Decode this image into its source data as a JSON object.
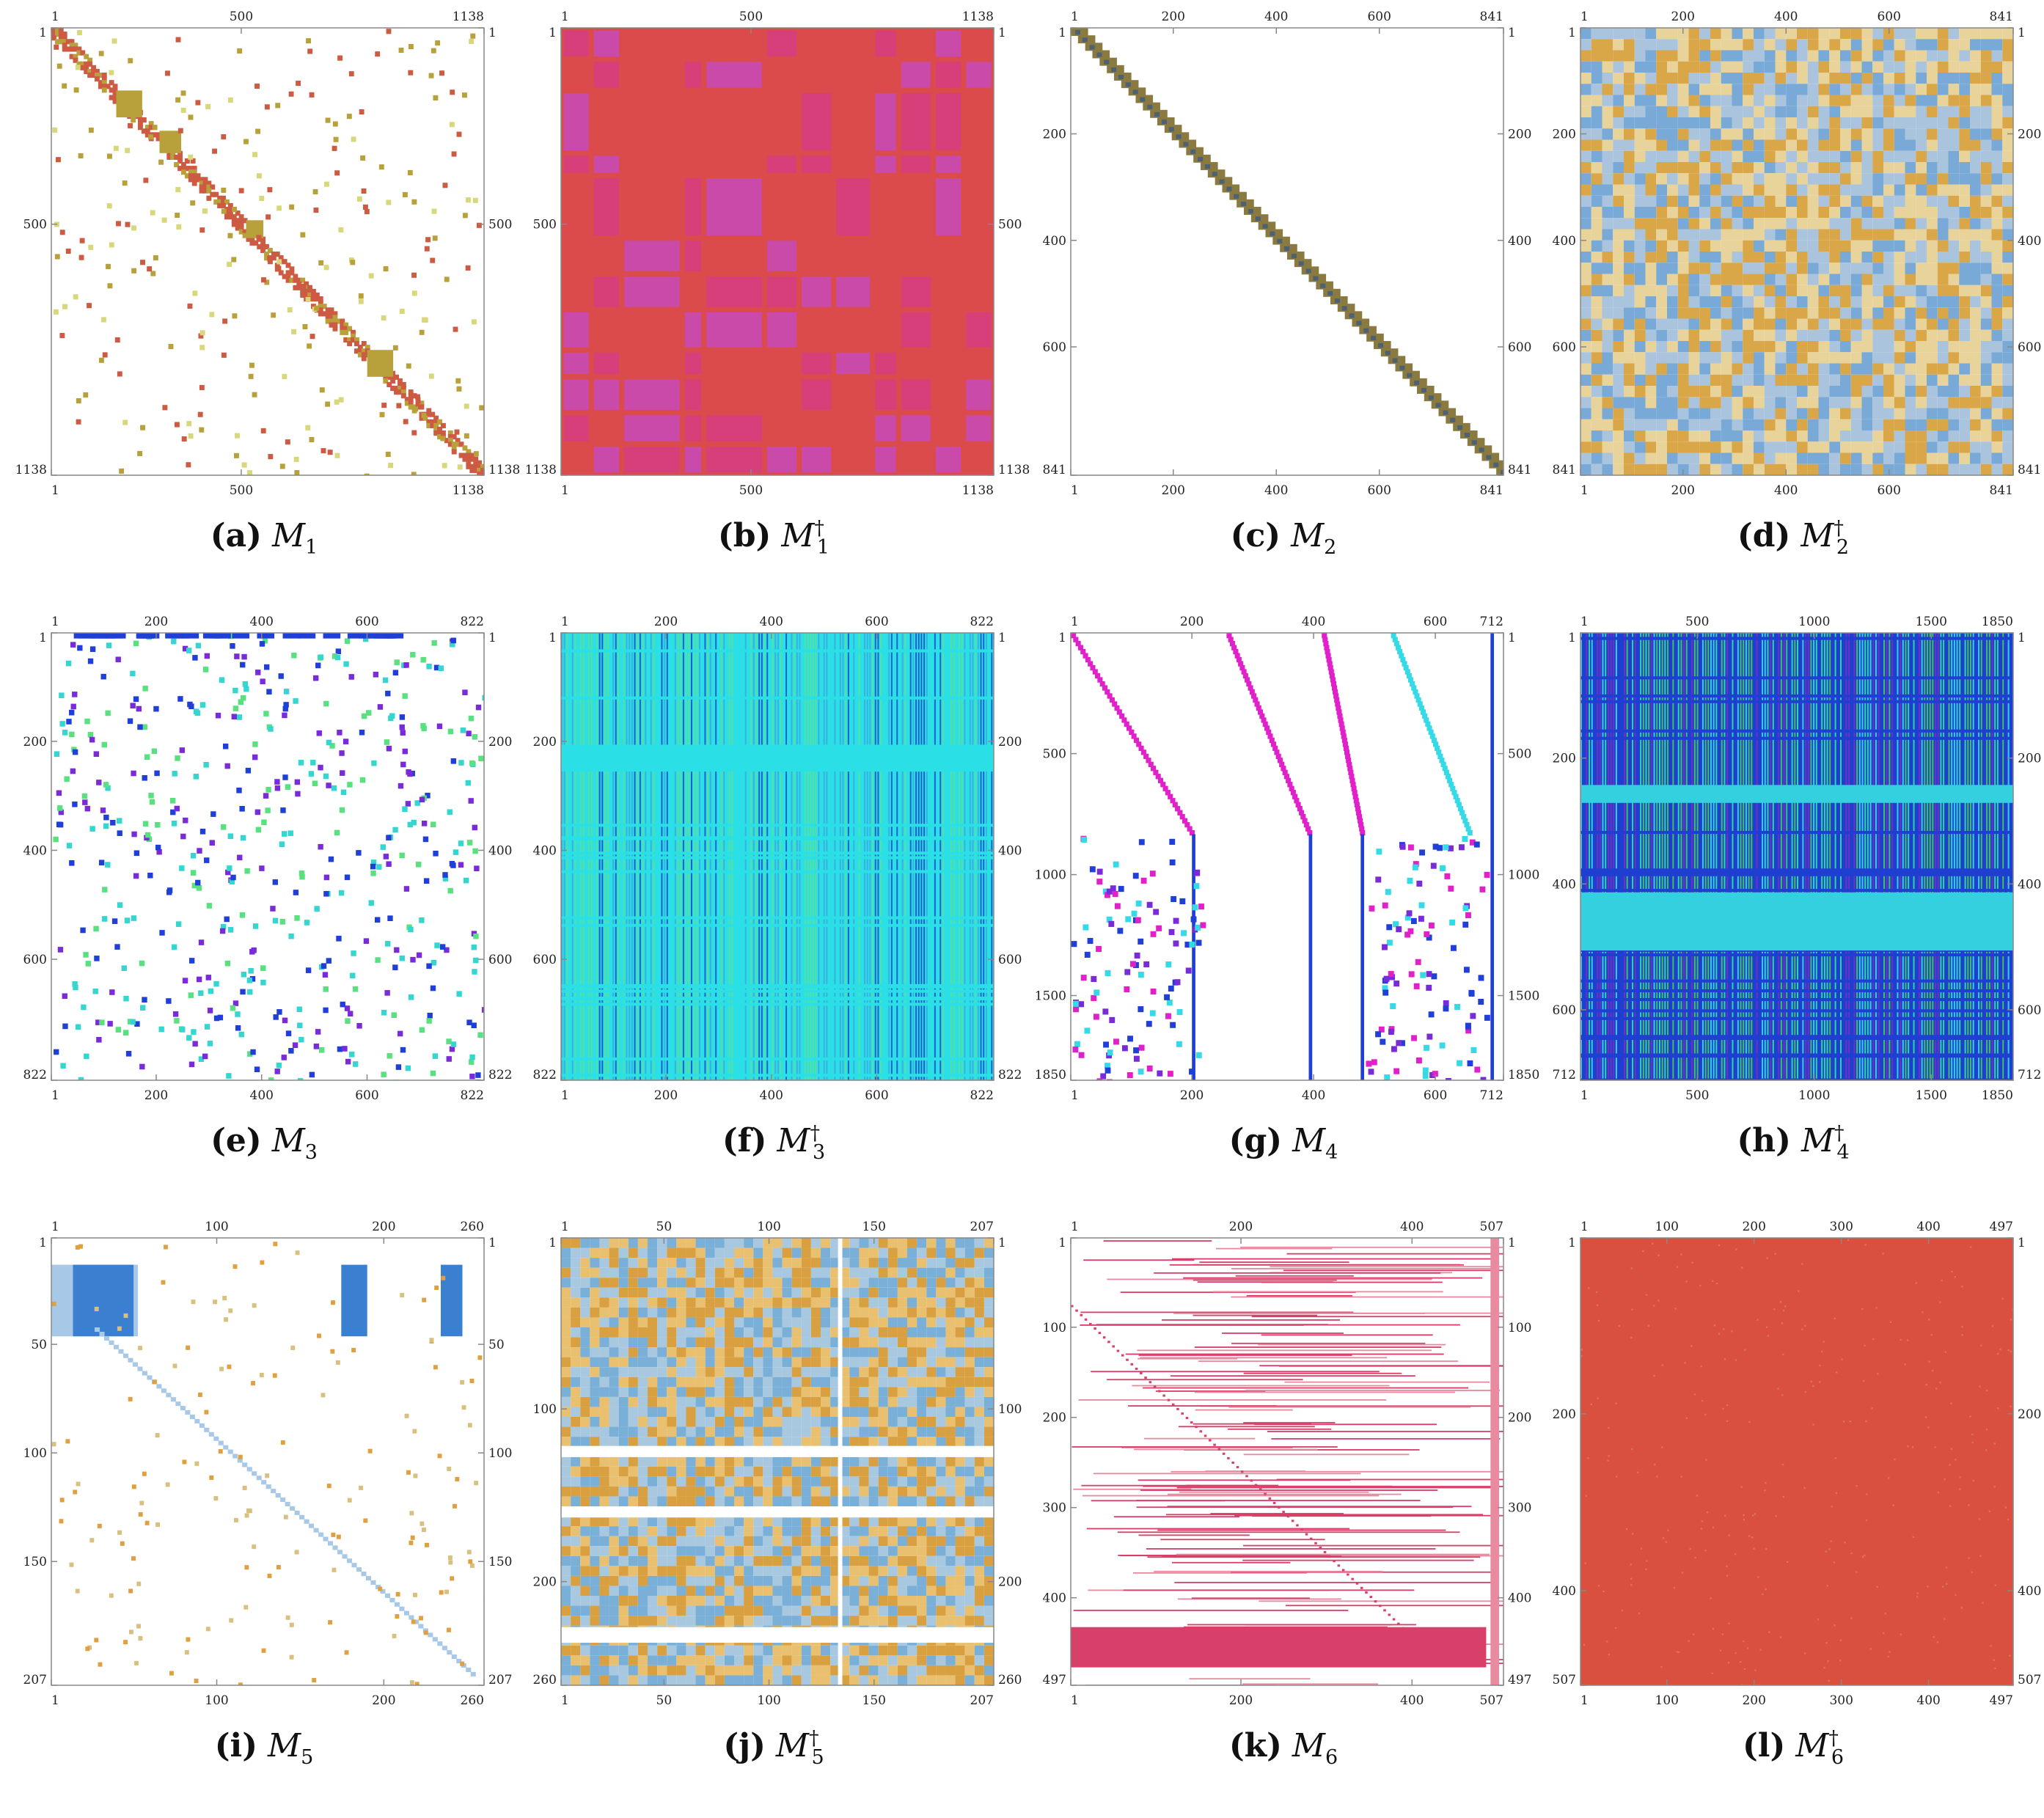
{
  "chart_data": [
    {
      "id": "a",
      "type": "heatmap",
      "pattern": "sparse-diag",
      "colors": [
        "#cd5a42",
        "#b8a03a",
        "#d8d87a"
      ],
      "caption": {
        "label": "(a)",
        "symbol": "M",
        "sub": "1",
        "sup": ""
      },
      "x_ticks": [
        "1",
        "500",
        "1138"
      ],
      "y_ticks": [
        "1",
        "500",
        "1138"
      ],
      "rows": 1138,
      "cols": 1138
    },
    {
      "id": "b",
      "type": "heatmap",
      "pattern": "dense-blocks",
      "colors": [
        "#dc4b4b",
        "#d63f7a",
        "#c94aa8"
      ],
      "caption": {
        "label": "(b)",
        "symbol": "M",
        "sub": "1",
        "sup": "†"
      },
      "x_ticks": [
        "1",
        "500",
        "1138"
      ],
      "y_ticks": [
        "1",
        "500",
        "1138"
      ],
      "rows": 1138,
      "cols": 1138
    },
    {
      "id": "c",
      "type": "heatmap",
      "pattern": "band",
      "colors": [
        "#8a7a40",
        "#4d6175",
        "#2b3d55"
      ],
      "caption": {
        "label": "(c)",
        "symbol": "M",
        "sub": "2",
        "sup": ""
      },
      "x_ticks": [
        "1",
        "200",
        "400",
        "600",
        "841"
      ],
      "y_ticks": [
        "1",
        "200",
        "400",
        "600",
        "841"
      ],
      "rows": 841,
      "cols": 841
    },
    {
      "id": "d",
      "type": "heatmap",
      "pattern": "dense-grid",
      "colors": [
        "#e8d49a",
        "#79a9d6",
        "#d9a648",
        "#a9c4dc"
      ],
      "caption": {
        "label": "(d)",
        "symbol": "M",
        "sub": "2",
        "sup": "†"
      },
      "x_ticks": [
        "1",
        "200",
        "400",
        "600",
        "841"
      ],
      "y_ticks": [
        "1",
        "200",
        "400",
        "600",
        "841"
      ],
      "rows": 841,
      "cols": 841
    },
    {
      "id": "e",
      "type": "heatmap",
      "pattern": "sparse-scatter",
      "colors": [
        "#1f3fd8",
        "#35d6d0",
        "#59e07f",
        "#7a2bd9"
      ],
      "caption": {
        "label": "(e)",
        "symbol": "M",
        "sub": "3",
        "sup": ""
      },
      "x_ticks": [
        "1",
        "200",
        "400",
        "600",
        "822"
      ],
      "y_ticks": [
        "1",
        "200",
        "400",
        "600",
        "822"
      ],
      "rows": 822,
      "cols": 822
    },
    {
      "id": "f",
      "type": "heatmap",
      "pattern": "dense-stripes",
      "colors": [
        "#2ae0e6",
        "#3ab0e0",
        "#1e5fd0",
        "#55e0a0"
      ],
      "caption": {
        "label": "(f)",
        "symbol": "M",
        "sub": "3",
        "sup": "†"
      },
      "x_ticks": [
        "1",
        "200",
        "400",
        "600",
        "822"
      ],
      "y_ticks": [
        "1",
        "200",
        "400",
        "600",
        "822"
      ],
      "rows": 822,
      "cols": 822
    },
    {
      "id": "g",
      "type": "heatmap",
      "pattern": "staircase",
      "colors": [
        "#1f3fd8",
        "#e020c8",
        "#36d9e6",
        "#7a2bd9"
      ],
      "caption": {
        "label": "(g)",
        "symbol": "M",
        "sub": "4",
        "sup": ""
      },
      "x_ticks": [
        "1",
        "200",
        "400",
        "600",
        "712"
      ],
      "y_ticks": [
        "1",
        "500",
        "1000",
        "1500",
        "1850"
      ],
      "rows": 1850,
      "cols": 712
    },
    {
      "id": "h",
      "type": "heatmap",
      "pattern": "dense-stripes-2",
      "colors": [
        "#1e3fd0",
        "#2ad8a0",
        "#35d0e0",
        "#7030c0",
        "#40c060"
      ],
      "caption": {
        "label": "(h)",
        "symbol": "M",
        "sub": "4",
        "sup": "†"
      },
      "x_ticks": [
        "1",
        "500",
        "1000",
        "1500",
        "1850"
      ],
      "y_ticks": [
        "1",
        "200",
        "400",
        "600",
        "712"
      ],
      "rows": 712,
      "cols": 1850
    },
    {
      "id": "i",
      "type": "heatmap",
      "pattern": "blocks-sparse",
      "colors": [
        "#3a7fd0",
        "#a8c8e8",
        "#d8c080",
        "#e0a040"
      ],
      "caption": {
        "label": "(i)",
        "symbol": "M",
        "sub": "5",
        "sup": ""
      },
      "x_ticks": [
        "1",
        "100",
        "200",
        "260"
      ],
      "y_ticks": [
        "1",
        "50",
        "100",
        "150",
        "207"
      ],
      "rows": 207,
      "cols": 260
    },
    {
      "id": "j",
      "type": "heatmap",
      "pattern": "dense-gapped",
      "colors": [
        "#e8c070",
        "#7ab0d8",
        "#d8a040",
        "#a8c8e0"
      ],
      "caption": {
        "label": "(j)",
        "symbol": "M",
        "sub": "5",
        "sup": "†"
      },
      "x_ticks": [
        "1",
        "50",
        "100",
        "150",
        "207"
      ],
      "y_ticks": [
        "1",
        "100",
        "200",
        "260"
      ],
      "rows": 260,
      "cols": 207
    },
    {
      "id": "k",
      "type": "heatmap",
      "pattern": "sparse-rows",
      "colors": [
        "#d8406a",
        "#e88aa0"
      ],
      "caption": {
        "label": "(k)",
        "symbol": "M",
        "sub": "6",
        "sup": ""
      },
      "x_ticks": [
        "1",
        "200",
        "400",
        "507"
      ],
      "y_ticks": [
        "1",
        "100",
        "200",
        "300",
        "400",
        "497"
      ],
      "rows": 497,
      "cols": 507
    },
    {
      "id": "l",
      "type": "heatmap",
      "pattern": "uniform",
      "colors": [
        "#d9503f",
        "#e07060"
      ],
      "caption": {
        "label": "(l)",
        "symbol": "M",
        "sub": "6",
        "sup": "†"
      },
      "x_ticks": [
        "1",
        "100",
        "200",
        "300",
        "400",
        "497"
      ],
      "y_ticks": [
        "1",
        "200",
        "400",
        "507"
      ],
      "rows": 507,
      "cols": 497
    }
  ]
}
